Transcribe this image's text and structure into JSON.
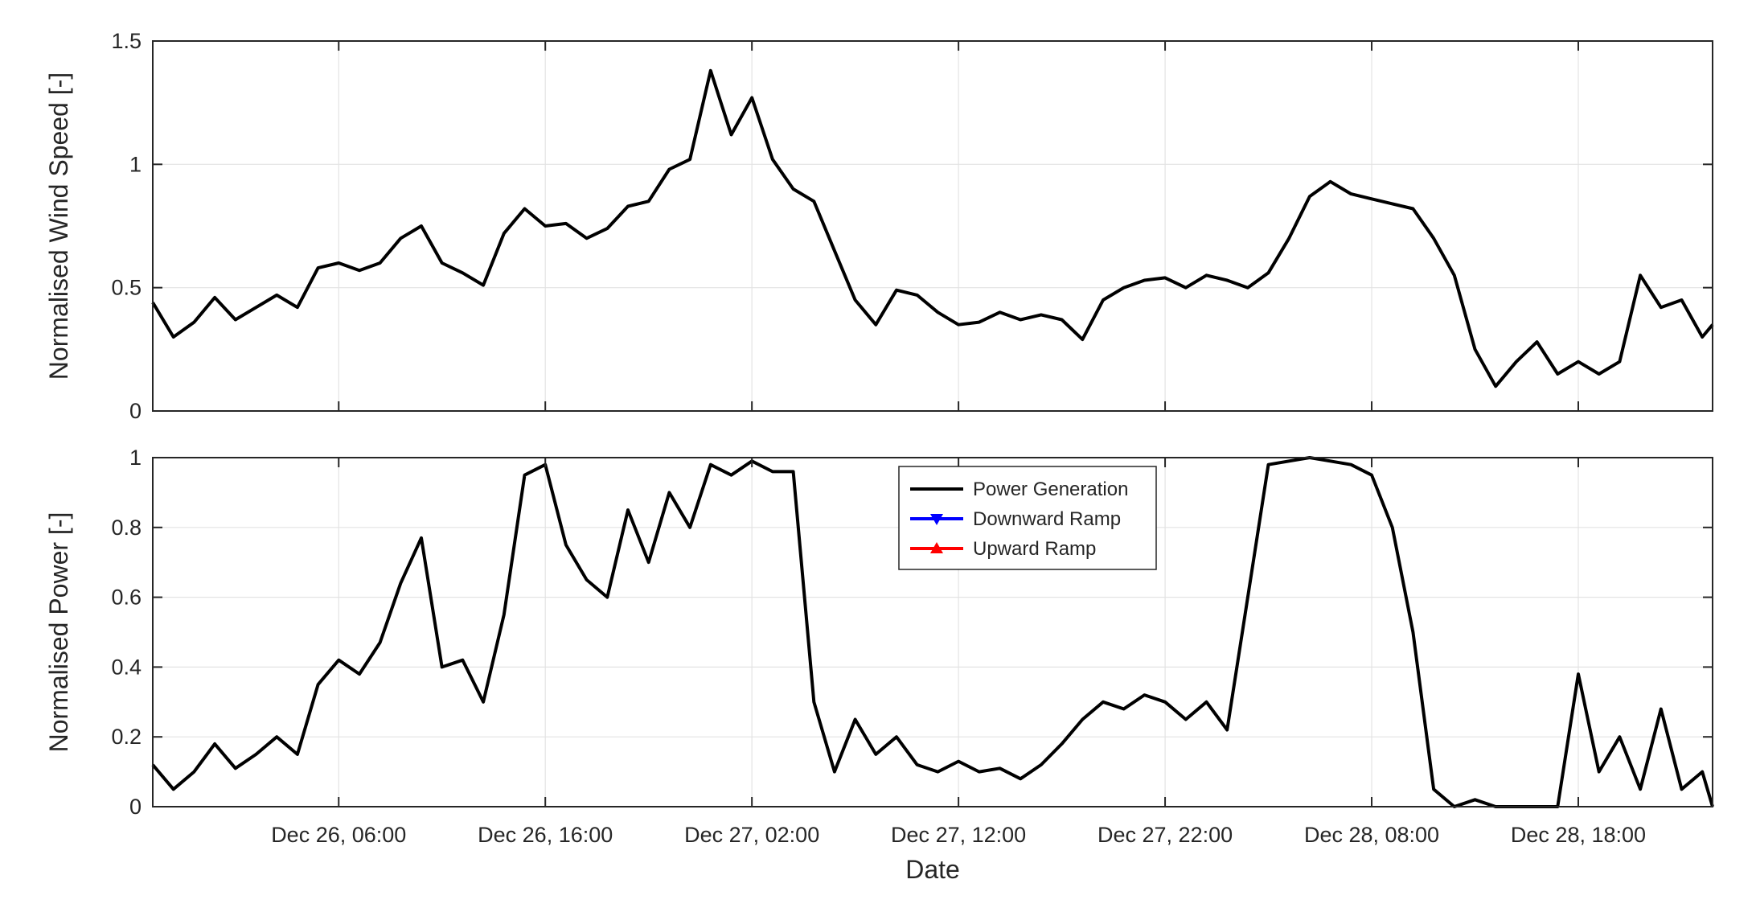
{
  "chart_data": [
    {
      "type": "line",
      "ylabel": "Normalised Wind Speed [-]",
      "xlabel": "",
      "ylim": [
        0,
        1.5
      ],
      "yticks": [
        "0",
        "0.5",
        "1",
        "1.5"
      ],
      "xlim": [
        "Dec 25, 21:00",
        "Dec 29, 00:30"
      ],
      "grid": true,
      "series": [
        {
          "color": "#000000",
          "points": [
            [
              "Dec 25, 21:00",
              0.44
            ],
            [
              "Dec 25, 22:00",
              0.3
            ],
            [
              "Dec 25, 23:00",
              0.36
            ],
            [
              "Dec 26, 00:00",
              0.46
            ],
            [
              "Dec 26, 01:00",
              0.37
            ],
            [
              "Dec 26, 02:00",
              0.42
            ],
            [
              "Dec 26, 03:00",
              0.47
            ],
            [
              "Dec 26, 04:00",
              0.42
            ],
            [
              "Dec 26, 05:00",
              0.58
            ],
            [
              "Dec 26, 06:00",
              0.6
            ],
            [
              "Dec 26, 07:00",
              0.57
            ],
            [
              "Dec 26, 08:00",
              0.6
            ],
            [
              "Dec 26, 09:00",
              0.7
            ],
            [
              "Dec 26, 10:00",
              0.75
            ],
            [
              "Dec 26, 11:00",
              0.6
            ],
            [
              "Dec 26, 12:00",
              0.56
            ],
            [
              "Dec 26, 13:00",
              0.51
            ],
            [
              "Dec 26, 14:00",
              0.72
            ],
            [
              "Dec 26, 15:00",
              0.82
            ],
            [
              "Dec 26, 16:00",
              0.75
            ],
            [
              "Dec 26, 17:00",
              0.76
            ],
            [
              "Dec 26, 18:00",
              0.7
            ],
            [
              "Dec 26, 19:00",
              0.74
            ],
            [
              "Dec 26, 20:00",
              0.83
            ],
            [
              "Dec 26, 21:00",
              0.85
            ],
            [
              "Dec 26, 22:00",
              0.98
            ],
            [
              "Dec 26, 23:00",
              1.02
            ],
            [
              "Dec 27, 00:00",
              1.38
            ],
            [
              "Dec 27, 01:00",
              1.12
            ],
            [
              "Dec 27, 02:00",
              1.27
            ],
            [
              "Dec 27, 03:00",
              1.02
            ],
            [
              "Dec 27, 04:00",
              0.9
            ],
            [
              "Dec 27, 05:00",
              0.85
            ],
            [
              "Dec 27, 06:00",
              0.65
            ],
            [
              "Dec 27, 07:00",
              0.45
            ],
            [
              "Dec 27, 08:00",
              0.35
            ],
            [
              "Dec 27, 09:00",
              0.49
            ],
            [
              "Dec 27, 10:00",
              0.47
            ],
            [
              "Dec 27, 11:00",
              0.4
            ],
            [
              "Dec 27, 12:00",
              0.35
            ],
            [
              "Dec 27, 13:00",
              0.36
            ],
            [
              "Dec 27, 14:00",
              0.4
            ],
            [
              "Dec 27, 15:00",
              0.37
            ],
            [
              "Dec 27, 16:00",
              0.39
            ],
            [
              "Dec 27, 17:00",
              0.37
            ],
            [
              "Dec 27, 18:00",
              0.29
            ],
            [
              "Dec 27, 19:00",
              0.45
            ],
            [
              "Dec 27, 20:00",
              0.5
            ],
            [
              "Dec 27, 21:00",
              0.53
            ],
            [
              "Dec 27, 22:00",
              0.54
            ],
            [
              "Dec 27, 23:00",
              0.5
            ],
            [
              "Dec 28, 00:00",
              0.55
            ],
            [
              "Dec 28, 01:00",
              0.53
            ],
            [
              "Dec 28, 02:00",
              0.5
            ],
            [
              "Dec 28, 03:00",
              0.56
            ],
            [
              "Dec 28, 04:00",
              0.7
            ],
            [
              "Dec 28, 05:00",
              0.87
            ],
            [
              "Dec 28, 06:00",
              0.93
            ],
            [
              "Dec 28, 07:00",
              0.88
            ],
            [
              "Dec 28, 08:00",
              0.86
            ],
            [
              "Dec 28, 09:00",
              0.84
            ],
            [
              "Dec 28, 10:00",
              0.82
            ],
            [
              "Dec 28, 11:00",
              0.7
            ],
            [
              "Dec 28, 12:00",
              0.55
            ],
            [
              "Dec 28, 13:00",
              0.25
            ],
            [
              "Dec 28, 14:00",
              0.1
            ],
            [
              "Dec 28, 15:00",
              0.2
            ],
            [
              "Dec 28, 16:00",
              0.28
            ],
            [
              "Dec 28, 17:00",
              0.15
            ],
            [
              "Dec 28, 18:00",
              0.2
            ],
            [
              "Dec 28, 19:00",
              0.15
            ],
            [
              "Dec 28, 20:00",
              0.2
            ],
            [
              "Dec 28, 21:00",
              0.55
            ],
            [
              "Dec 28, 22:00",
              0.42
            ],
            [
              "Dec 28, 23:00",
              0.45
            ],
            [
              "Dec 29, 00:00",
              0.3
            ],
            [
              "Dec 29, 00:30",
              0.35
            ]
          ]
        }
      ]
    },
    {
      "type": "line",
      "ylabel": "Normalised Power [-]",
      "xlabel": "Date",
      "ylim": [
        0,
        1
      ],
      "yticks": [
        "0",
        "0.2",
        "0.4",
        "0.6",
        "0.8",
        "1"
      ],
      "xticks": [
        "Dec 26, 06:00",
        "Dec 26, 16:00",
        "Dec 27, 02:00",
        "Dec 27, 12:00",
        "Dec 27, 22:00",
        "Dec 28, 08:00",
        "Dec 28, 18:00"
      ],
      "grid": true,
      "legend": {
        "position": "top-center",
        "entries": [
          "Power Generation",
          "Downward Ramp",
          "Upward Ramp"
        ]
      },
      "series": [
        {
          "name": "Power Generation",
          "color": "#000000",
          "points": [
            [
              "Dec 25, 21:00",
              0.12
            ],
            [
              "Dec 25, 22:00",
              0.05
            ],
            [
              "Dec 25, 23:00",
              0.1
            ],
            [
              "Dec 26, 00:00",
              0.18
            ],
            [
              "Dec 26, 01:00",
              0.11
            ],
            [
              "Dec 26, 02:00",
              0.15
            ],
            [
              "Dec 26, 03:00",
              0.2
            ],
            [
              "Dec 26, 04:00",
              0.15
            ],
            [
              "Dec 26, 05:00",
              0.35
            ],
            [
              "Dec 26, 06:00",
              0.42
            ],
            [
              "Dec 26, 07:00",
              0.38
            ],
            [
              "Dec 26, 08:00",
              0.47
            ],
            [
              "Dec 26, 09:00",
              0.64
            ],
            [
              "Dec 26, 10:00",
              0.77
            ],
            [
              "Dec 26, 11:00",
              0.4
            ],
            [
              "Dec 26, 12:00",
              0.42
            ],
            [
              "Dec 26, 13:00",
              0.3
            ],
            [
              "Dec 26, 14:00",
              0.55
            ],
            [
              "Dec 26, 15:00",
              0.95
            ],
            [
              "Dec 26, 16:00",
              0.98
            ],
            [
              "Dec 26, 17:00",
              0.75
            ],
            [
              "Dec 26, 18:00",
              0.65
            ],
            [
              "Dec 26, 19:00",
              0.6
            ],
            [
              "Dec 26, 20:00",
              0.85
            ],
            [
              "Dec 26, 21:00",
              0.7
            ],
            [
              "Dec 26, 22:00",
              0.9
            ],
            [
              "Dec 26, 23:00",
              0.8
            ],
            [
              "Dec 27, 00:00",
              0.98
            ],
            [
              "Dec 27, 01:00",
              0.95
            ],
            [
              "Dec 27, 02:00",
              0.99
            ],
            [
              "Dec 27, 03:00",
              0.96
            ],
            [
              "Dec 27, 04:00",
              0.96
            ],
            [
              "Dec 27, 05:00",
              0.3
            ],
            [
              "Dec 27, 06:00",
              0.1
            ],
            [
              "Dec 27, 07:00",
              0.25
            ],
            [
              "Dec 27, 08:00",
              0.15
            ],
            [
              "Dec 27, 09:00",
              0.2
            ],
            [
              "Dec 27, 10:00",
              0.12
            ],
            [
              "Dec 27, 11:00",
              0.1
            ],
            [
              "Dec 27, 12:00",
              0.13
            ],
            [
              "Dec 27, 13:00",
              0.1
            ],
            [
              "Dec 27, 14:00",
              0.11
            ],
            [
              "Dec 27, 15:00",
              0.08
            ],
            [
              "Dec 27, 16:00",
              0.12
            ],
            [
              "Dec 27, 17:00",
              0.18
            ],
            [
              "Dec 27, 18:00",
              0.25
            ],
            [
              "Dec 27, 19:00",
              0.3
            ],
            [
              "Dec 27, 20:00",
              0.28
            ],
            [
              "Dec 27, 21:00",
              0.32
            ],
            [
              "Dec 27, 22:00",
              0.3
            ],
            [
              "Dec 27, 23:00",
              0.25
            ],
            [
              "Dec 28, 00:00",
              0.3
            ],
            [
              "Dec 28, 01:00",
              0.22
            ],
            [
              "Dec 28, 02:00",
              0.6
            ],
            [
              "Dec 28, 03:00",
              0.98
            ],
            [
              "Dec 28, 04:00",
              0.99
            ],
            [
              "Dec 28, 05:00",
              1.0
            ],
            [
              "Dec 28, 06:00",
              0.99
            ],
            [
              "Dec 28, 07:00",
              0.98
            ],
            [
              "Dec 28, 08:00",
              0.95
            ],
            [
              "Dec 28, 09:00",
              0.8
            ],
            [
              "Dec 28, 10:00",
              0.5
            ],
            [
              "Dec 28, 11:00",
              0.05
            ],
            [
              "Dec 28, 12:00",
              0.0
            ],
            [
              "Dec 28, 13:00",
              0.02
            ],
            [
              "Dec 28, 14:00",
              0.0
            ],
            [
              "Dec 28, 15:00",
              0.0
            ],
            [
              "Dec 28, 16:00",
              0.0
            ],
            [
              "Dec 28, 17:00",
              0.0
            ],
            [
              "Dec 28, 18:00",
              0.38
            ],
            [
              "Dec 28, 19:00",
              0.1
            ],
            [
              "Dec 28, 20:00",
              0.2
            ],
            [
              "Dec 28, 21:00",
              0.05
            ],
            [
              "Dec 28, 22:00",
              0.28
            ],
            [
              "Dec 28, 23:00",
              0.05
            ],
            [
              "Dec 29, 00:00",
              0.1
            ],
            [
              "Dec 29, 00:30",
              0.0
            ]
          ]
        },
        {
          "name": "Downward Ramp",
          "color": "#0000ff",
          "marker": "triangle-down",
          "segments": []
        },
        {
          "name": "Upward Ramp",
          "color": "#ff0000",
          "marker": "triangle-up",
          "segments": []
        }
      ]
    }
  ]
}
